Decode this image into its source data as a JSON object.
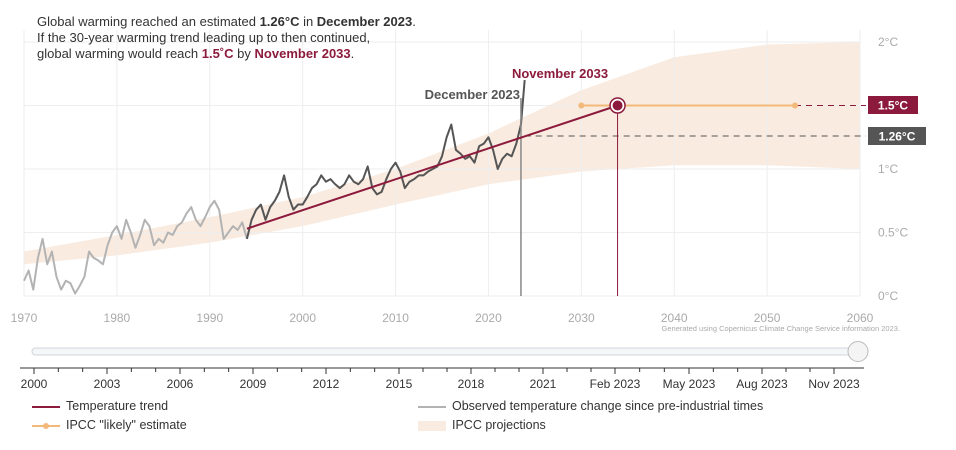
{
  "headline": {
    "line1_prefix": "Global warming reached an estimated ",
    "line1_value": "1.26°C",
    "line1_mid": " in ",
    "line1_date": "December 2023",
    "line1_end": ".",
    "line2": "If the 30-year warming trend leading up to then continued,",
    "line3_prefix": "global warming would reach ",
    "line3_value": "1.5˚C",
    "line3_mid": " by ",
    "line3_date": "November 2033",
    "line3_end": "."
  },
  "annotations": {
    "december": "December 2023",
    "november": "November 2033",
    "badge_15": "1.5°C",
    "badge_126": "1.26°C",
    "credit": "Generated using Copernicus Climate Change Service information 2023."
  },
  "colors": {
    "trend": "#8c1a3c",
    "observed_dark": "#555555",
    "observed_light": "#b3b3b3",
    "ipcc_likely": "#f2b97a",
    "projection_band": "#f9ebe0",
    "grid": "#eeeeee",
    "axis_text": "#aaaaaa",
    "badge_126": "#555555"
  },
  "chart_data": {
    "type": "line",
    "xlim": [
      1970,
      2060
    ],
    "ylim": [
      0,
      2
    ],
    "y_unit": "°C",
    "x_ticks": [
      "1970",
      "1980",
      "1990",
      "2000",
      "2010",
      "2020",
      "2030",
      "2040",
      "2050",
      "2060"
    ],
    "y_ticks": [
      "0°C",
      "0.5°C",
      "1°C",
      "2°C"
    ],
    "y_tick_values": [
      0,
      0.5,
      1,
      2
    ],
    "reference_lines": [
      {
        "value": 1.5,
        "label": "1.5°C"
      },
      {
        "value": 1.26,
        "label": "1.26°C"
      }
    ],
    "series": [
      {
        "name": "Temperature trend",
        "kind": "trend",
        "x": [
          1994.0,
          2033.9
        ],
        "y": [
          0.53,
          1.5
        ]
      },
      {
        "name": "Observed temperature change since pre-industrial times",
        "kind": "observed",
        "highlight_from": 1994.0,
        "x": [
          1970.0,
          1970.5,
          1971.0,
          1971.5,
          1972.0,
          1972.5,
          1973.0,
          1973.5,
          1974.0,
          1974.5,
          1975.0,
          1975.5,
          1976.0,
          1976.5,
          1977.0,
          1977.5,
          1978.0,
          1978.5,
          1979.0,
          1979.5,
          1980.0,
          1980.5,
          1981.0,
          1981.5,
          1982.0,
          1982.5,
          1983.0,
          1983.5,
          1984.0,
          1984.5,
          1985.0,
          1985.5,
          1986.0,
          1986.5,
          1987.0,
          1987.5,
          1988.0,
          1988.5,
          1989.0,
          1989.5,
          1990.0,
          1990.5,
          1991.0,
          1991.5,
          1992.0,
          1992.5,
          1993.0,
          1993.5,
          1994.0,
          1994.5,
          1995.0,
          1995.5,
          1996.0,
          1996.5,
          1997.0,
          1997.5,
          1998.0,
          1998.5,
          1999.0,
          1999.5,
          2000.0,
          2000.5,
          2001.0,
          2001.5,
          2002.0,
          2002.5,
          2003.0,
          2003.5,
          2004.0,
          2004.5,
          2005.0,
          2005.5,
          2006.0,
          2006.5,
          2007.0,
          2007.5,
          2008.0,
          2008.5,
          2009.0,
          2009.5,
          2010.0,
          2010.5,
          2011.0,
          2011.5,
          2012.0,
          2012.5,
          2013.0,
          2013.5,
          2014.0,
          2014.5,
          2015.0,
          2015.5,
          2016.0,
          2016.5,
          2017.0,
          2017.5,
          2018.0,
          2018.5,
          2019.0,
          2019.5,
          2020.0,
          2020.5,
          2021.0,
          2021.5,
          2022.0,
          2022.5,
          2023.0,
          2023.5,
          2023.9
        ],
        "y": [
          0.12,
          0.2,
          0.05,
          0.3,
          0.45,
          0.25,
          0.35,
          0.15,
          0.05,
          0.12,
          0.1,
          0.02,
          0.08,
          0.15,
          0.35,
          0.3,
          0.28,
          0.25,
          0.4,
          0.5,
          0.55,
          0.45,
          0.6,
          0.5,
          0.38,
          0.48,
          0.6,
          0.55,
          0.4,
          0.45,
          0.42,
          0.5,
          0.48,
          0.55,
          0.58,
          0.65,
          0.7,
          0.6,
          0.55,
          0.62,
          0.7,
          0.75,
          0.68,
          0.45,
          0.5,
          0.55,
          0.52,
          0.58,
          0.45,
          0.6,
          0.68,
          0.72,
          0.6,
          0.7,
          0.75,
          0.82,
          0.95,
          0.78,
          0.68,
          0.72,
          0.72,
          0.78,
          0.85,
          0.88,
          0.95,
          0.9,
          0.92,
          0.88,
          0.85,
          0.88,
          0.95,
          0.9,
          0.88,
          0.92,
          1.02,
          0.85,
          0.8,
          0.82,
          0.92,
          1.0,
          1.05,
          0.98,
          0.85,
          0.9,
          0.92,
          0.95,
          0.95,
          0.98,
          1.0,
          1.02,
          1.1,
          1.25,
          1.35,
          1.15,
          1.12,
          1.08,
          1.1,
          1.05,
          1.18,
          1.2,
          1.25,
          1.15,
          1.0,
          1.08,
          1.12,
          1.1,
          1.2,
          1.35,
          1.7
        ]
      },
      {
        "name": "IPCC \"likely\" estimate",
        "kind": "range",
        "x": [
          2030,
          2053
        ],
        "y": [
          1.5,
          1.5
        ]
      },
      {
        "name": "IPCC projections",
        "kind": "band",
        "x": [
          1970,
          1980,
          1990,
          2000,
          2010,
          2020,
          2030,
          2040,
          2050,
          2060
        ],
        "low": [
          0.25,
          0.32,
          0.42,
          0.55,
          0.72,
          0.88,
          0.98,
          1.03,
          1.03,
          1.0
        ],
        "high": [
          0.35,
          0.48,
          0.62,
          0.78,
          1.0,
          1.28,
          1.62,
          1.88,
          1.98,
          2.0
        ]
      }
    ]
  },
  "timeline": {
    "labels": [
      "2000",
      "2003",
      "2006",
      "2009",
      "2012",
      "2015",
      "2018",
      "2021",
      "Feb 2023",
      "May 2023",
      "Aug 2023",
      "Nov 2023"
    ]
  },
  "legend": {
    "trend": "Temperature trend",
    "observed": "Observed temperature change since pre-industrial times",
    "likely": "IPCC \"likely\" estimate",
    "projections": "IPCC projections"
  }
}
